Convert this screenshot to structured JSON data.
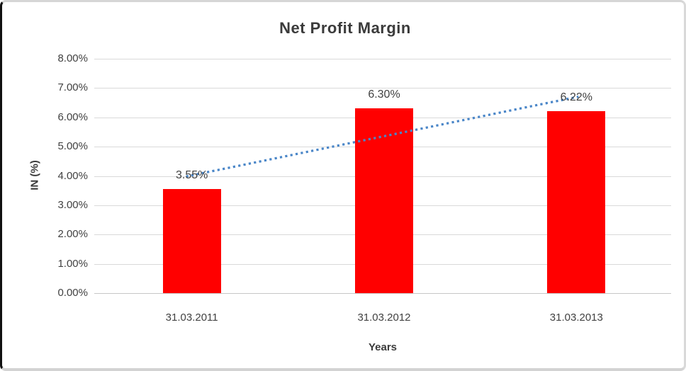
{
  "chart_data": {
    "type": "bar",
    "title": "Net Profit Margin",
    "categories": [
      "31.03.2011",
      "31.03.2012",
      "31.03.2013"
    ],
    "values": [
      3.55,
      6.3,
      6.22
    ],
    "data_labels": [
      "3.55%",
      "6.30%",
      "6.22%"
    ],
    "xlabel": "Years",
    "ylabel": "IN (%)",
    "ylim": [
      0,
      8
    ],
    "y_tick_step": 1,
    "y_tick_labels": [
      "0.00%",
      "1.00%",
      "2.00%",
      "3.00%",
      "4.00%",
      "5.00%",
      "6.00%",
      "7.00%",
      "8.00%"
    ],
    "grid": true,
    "legend_position": "none",
    "bar_color": "#FF0000",
    "gridline_color": "#D9D9D9",
    "text_color": "#414141",
    "trendline": {
      "type": "linear",
      "style": "dotted",
      "color": "#4A86C8"
    }
  }
}
